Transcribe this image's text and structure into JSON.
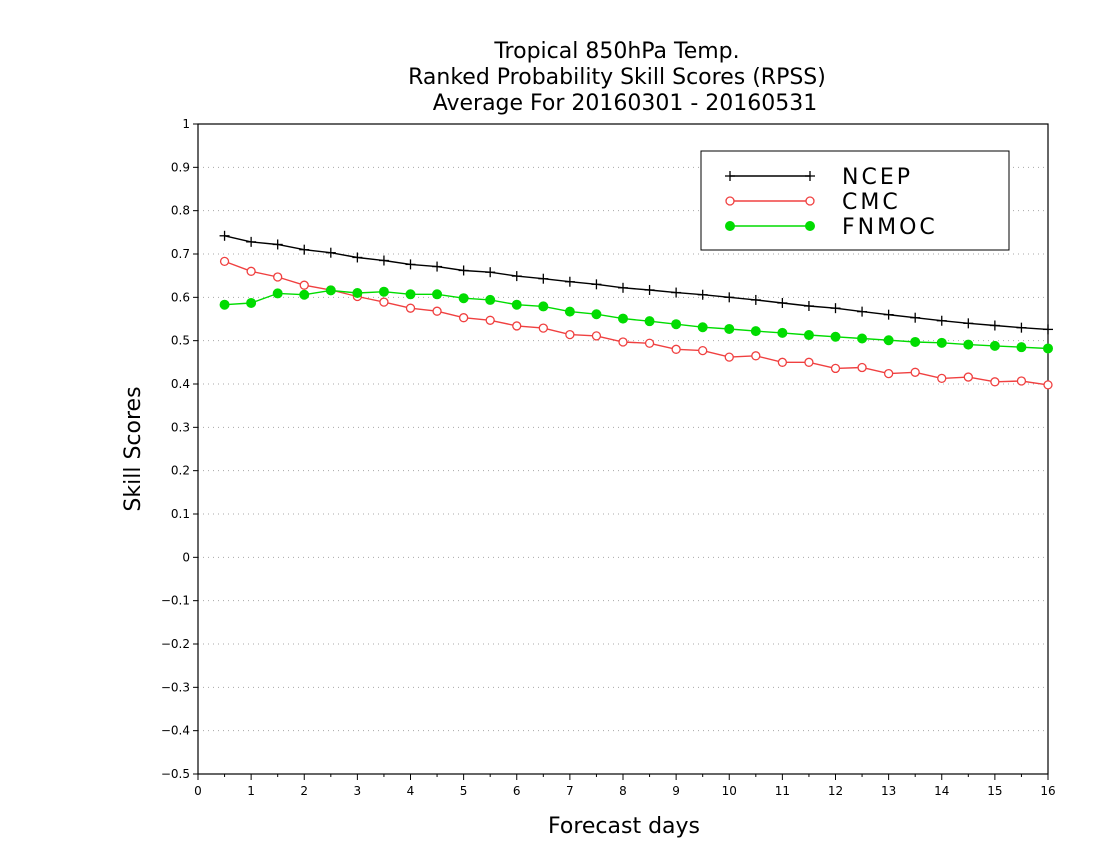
{
  "chart_data": {
    "type": "line",
    "title_lines": [
      "Tropical 850hPa Temp.",
      "Ranked Probability Skill Scores (RPSS)",
      "Average For 20160301 - 20160531"
    ],
    "xlabel": "Forecast days",
    "ylabel": "Skill Scores",
    "xlim": [
      0,
      16
    ],
    "ylim": [
      -0.5,
      1
    ],
    "xticks": [
      0,
      1,
      2,
      3,
      4,
      5,
      6,
      7,
      8,
      9,
      10,
      11,
      12,
      13,
      14,
      15,
      16
    ],
    "yticks": [
      -0.5,
      -0.4,
      -0.3,
      -0.2,
      -0.1,
      0,
      0.1,
      0.2,
      0.3,
      0.4,
      0.5,
      0.6,
      0.7,
      0.8,
      0.9,
      1
    ],
    "ytick_labels": [
      "−0.5",
      "−0.4",
      "−0.3",
      "−0.2",
      "−0.1",
      "0",
      "0.1",
      "0.2",
      "0.3",
      "0.4",
      "0.5",
      "0.6",
      "0.7",
      "0.8",
      "0.9",
      "1"
    ],
    "grid": "horizontal dotted",
    "legend_position": "top-right",
    "x": [
      0.5,
      1.0,
      1.5,
      2.0,
      2.5,
      3.0,
      3.5,
      4.0,
      4.5,
      5.0,
      5.5,
      6.0,
      6.5,
      7.0,
      7.5,
      8.0,
      8.5,
      9.0,
      9.5,
      10.0,
      10.5,
      11.0,
      11.5,
      12.0,
      12.5,
      13.0,
      13.5,
      14.0,
      14.5,
      15.0,
      15.5,
      16.0
    ],
    "series": [
      {
        "name": "NCEP",
        "color": "#000000",
        "marker": "plus",
        "values": [
          0.742,
          0.728,
          0.722,
          0.71,
          0.703,
          0.692,
          0.685,
          0.676,
          0.671,
          0.662,
          0.658,
          0.649,
          0.643,
          0.636,
          0.63,
          0.622,
          0.617,
          0.611,
          0.606,
          0.6,
          0.594,
          0.587,
          0.58,
          0.575,
          0.567,
          0.56,
          0.553,
          0.546,
          0.54,
          0.535,
          0.53,
          0.526
        ]
      },
      {
        "name": "CMC",
        "color": "#f04040",
        "marker": "open-circle",
        "values": [
          0.683,
          0.66,
          0.647,
          0.628,
          0.617,
          0.602,
          0.589,
          0.575,
          0.568,
          0.553,
          0.547,
          0.534,
          0.529,
          0.514,
          0.511,
          0.497,
          0.494,
          0.48,
          0.477,
          0.462,
          0.465,
          0.45,
          0.45,
          0.436,
          0.438,
          0.424,
          0.427,
          0.413,
          0.416,
          0.405,
          0.407,
          0.398
        ]
      },
      {
        "name": "FNMOC",
        "color": "#00dc00",
        "marker": "filled-circle",
        "values": [
          0.583,
          0.587,
          0.609,
          0.606,
          0.616,
          0.61,
          0.613,
          0.607,
          0.607,
          0.598,
          0.594,
          0.583,
          0.579,
          0.567,
          0.561,
          0.551,
          0.545,
          0.538,
          0.531,
          0.527,
          0.522,
          0.518,
          0.513,
          0.509,
          0.505,
          0.501,
          0.497,
          0.495,
          0.491,
          0.488,
          0.485,
          0.482
        ]
      }
    ]
  }
}
